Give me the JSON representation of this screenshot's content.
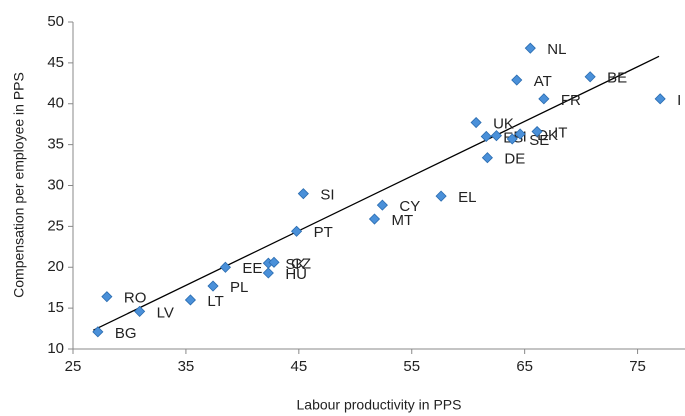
{
  "chart_data": {
    "type": "scatter",
    "x_label": "Labour productivity in PPS",
    "y_label": "Compensation per employee in PPS",
    "color": "#4a90d9",
    "point_labels": [
      "BG",
      "RO",
      "LV",
      "LT",
      "PL",
      "EE",
      "SK",
      "CZ",
      "HU",
      "PT",
      "SI",
      "MT",
      "CY",
      "EL",
      "UK",
      "ES",
      "FI",
      "DE",
      "AT",
      "NL",
      "SE",
      "DK",
      "IT",
      "FR",
      "BE",
      "I"
    ],
    "x": [
      27.2,
      28.0,
      30.9,
      35.4,
      37.4,
      38.5,
      42.3,
      42.8,
      42.3,
      44.8,
      45.4,
      51.7,
      52.4,
      57.6,
      60.7,
      61.6,
      62.5,
      61.7,
      64.3,
      65.5,
      63.9,
      64.6,
      66.1,
      66.7,
      70.8,
      77.0
    ],
    "values": [
      12.1,
      16.4,
      14.6,
      16.0,
      17.7,
      20.0,
      20.5,
      20.6,
      19.3,
      24.4,
      29.0,
      25.9,
      27.6,
      28.7,
      37.7,
      36.0,
      36.1,
      33.4,
      42.9,
      46.8,
      35.7,
      36.3,
      36.6,
      40.6,
      43.3,
      40.6
    ],
    "trendline": {
      "x": [
        26.8,
        76.9
      ],
      "y": [
        12.3,
        45.8
      ]
    },
    "xlim": [
      25,
      79.2
    ],
    "ylim": [
      10,
      50
    ],
    "xticks": [
      25,
      35,
      45,
      55,
      65,
      75
    ],
    "yticks": [
      10,
      15,
      20,
      25,
      30,
      35,
      40,
      45,
      50
    ]
  }
}
